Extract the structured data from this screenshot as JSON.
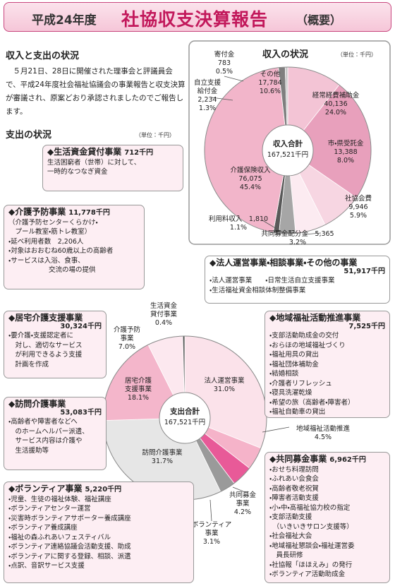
{
  "header": {
    "year": "平成24年度",
    "title": "社協収支決算報告",
    "suffix": "（概要）"
  },
  "intro": {
    "heading": "収入と支出の状況",
    "text": "　５月21日、28日に開催された理事会と評議員会で、平成24年度社会福祉協議会の事業報告と収支決算が審議され、原案どおり承認されましたのでご報告します。"
  },
  "income_chart": {
    "type": "pie",
    "title": "収入の状況",
    "unit": "（単位：千円）",
    "center_label": "収入合計",
    "total": 167521,
    "total_label": "167,521千円",
    "categories": [
      "その他",
      "経常経費補助金",
      "市・県受託金",
      "社協会費",
      "共同募金配分金",
      "利用料収入",
      "介護保険収入",
      "自立支援\n給付金",
      "寄付金"
    ],
    "values": [
      17784,
      40136,
      13388,
      9946,
      5365,
      1810,
      76075,
      2234,
      783
    ],
    "value_labels": [
      "17,784",
      "40,136",
      "13,388",
      "9,946",
      "5,365",
      "1,810",
      "76,075",
      "2,234",
      "783"
    ],
    "percents": [
      10.6,
      24.0,
      8.0,
      5.9,
      3.2,
      1.1,
      45.4,
      1.3,
      0.5
    ],
    "percent_labels": [
      "10.6%",
      "24.0%",
      "8.0%",
      "5.9%",
      "3.2%",
      "1.1%",
      "45.4%",
      "1.3%",
      "0.5%"
    ],
    "colors": [
      "#f3c4d5",
      "#e8a0bc",
      "#f7d6e2",
      "#fcebf1",
      "#a6a6a6",
      "#595959",
      "#f2b5ca",
      "#7f7f7f",
      "#c8c8c8"
    ]
  },
  "expense_chart": {
    "type": "pie",
    "title": "支出の状況",
    "unit": "（単位：千円）",
    "center_label": "支出合計",
    "total": 167521,
    "total_label": "167,521千円",
    "slice_labels": [
      "法人運営事業",
      "地域福祉活動推進",
      "共同募金\n事業",
      "ボランティア\n事業",
      "訪問介護事業",
      "居宅介護\n支援事業",
      "介護予防\n事業",
      "生活資金\n貸付事業"
    ],
    "percents": [
      31.0,
      4.5,
      4.2,
      3.1,
      31.7,
      18.1,
      7.0,
      0.4
    ],
    "percent_labels": [
      "31.0%",
      "4.5%",
      "4.2%",
      "3.1%",
      "31.7%",
      "18.1%",
      "7.0%",
      "0.4%"
    ],
    "colors": [
      "#fbe2ea",
      "#f5b3c9",
      "#e85a98",
      "#9a9a9a",
      "#e6e6e6",
      "#f4b6cb",
      "#fce8ef",
      "#555555"
    ]
  },
  "expense_boxes": [
    {
      "title": "◆法人運営事業・相談事業・その他の事業",
      "amount": 51917,
      "amount_label": "51,917千円",
      "lines": [
        "・法人運営事業　　・日常生活自立支援事業",
        "・生活福祉資金相談体制整備事業"
      ]
    },
    {
      "title": "◆地域福祉活動推進事業",
      "amount": 7525,
      "amount_label": "7,525千円",
      "lines": [
        "・支部活動助成金の交付",
        "・おらほの地域福祉づくり",
        "・福祉用具の貸出",
        "・福祉団体補助金",
        "・結婚相談",
        "・介護者リフレッシュ",
        "・寝具洗濯乾燥",
        "・希望の旅（高齢者・障害者）",
        "・福祉自動車の貸出"
      ]
    },
    {
      "title": "◆共同募金事業",
      "amount": 6962,
      "amount_label": "6,962千円",
      "lines": [
        "・おせち料理訪問",
        "・ふれあい会食会",
        "・高齢者敬老祝賀",
        "・障害者活動支援",
        "・小・中・高福祉協力校の指定",
        "・支部活動支援",
        "　（いきいきサロン支援等）",
        "・社会福祉大会",
        "・地域福祉懇談会・福祉運営委",
        "　員長研修",
        "・社協報「ほほえみ」の発行",
        "・ボランティア活動助成金"
      ]
    },
    {
      "title": "◆ボランティア事業",
      "amount": 5220,
      "amount_label": "5,220千円",
      "lines": [
        "・児童、生徒の福祉体験、福祉講座",
        "・ボランティアセンター運営",
        "・災害時ボランティアサポーター養成講座",
        "・ボランティア養成講座",
        "・福祉の森ふれあいフェスティバル",
        "・ボランティア連絡協議会活動支援、助成",
        "・ボランティアに関する登録、相談、派遣",
        "・点訳、音訳サービス支援"
      ]
    },
    {
      "title": "◆訪問介護事業",
      "amount": 53083,
      "amount_label": "53,083千円",
      "lines": [
        "・高齢者や障害者などへ",
        "　のホームヘルパー派遣、",
        "　サービス内容は介護や",
        "　生活援助等"
      ]
    },
    {
      "title": "◆居宅介護支援事業",
      "amount": 30324,
      "amount_label": "30,324千円",
      "lines": [
        "・要介護・支援認定者に",
        "　対し、適切なサービス",
        "　が利用できるよう支援",
        "　計画を作成"
      ]
    },
    {
      "title": "◆介護予防事業",
      "amount": 11778,
      "amount_label": "11,778千円",
      "lines": [
        "（介護予防センターくらかけ・",
        "　プール教室・筋トレ教室）",
        "・延べ利用者数　2,206人",
        "・対象はおおむね60歳以上の高齢者",
        "・サービスは入浴、食事、",
        "　　　　　　交流の場の提供"
      ]
    },
    {
      "title": "◆生活資金貸付事業",
      "amount": 712,
      "amount_label": "712千円",
      "lines": [
        "生活困窮者（世帯）に対して、",
        "一時的なつなぎ資金"
      ]
    }
  ]
}
